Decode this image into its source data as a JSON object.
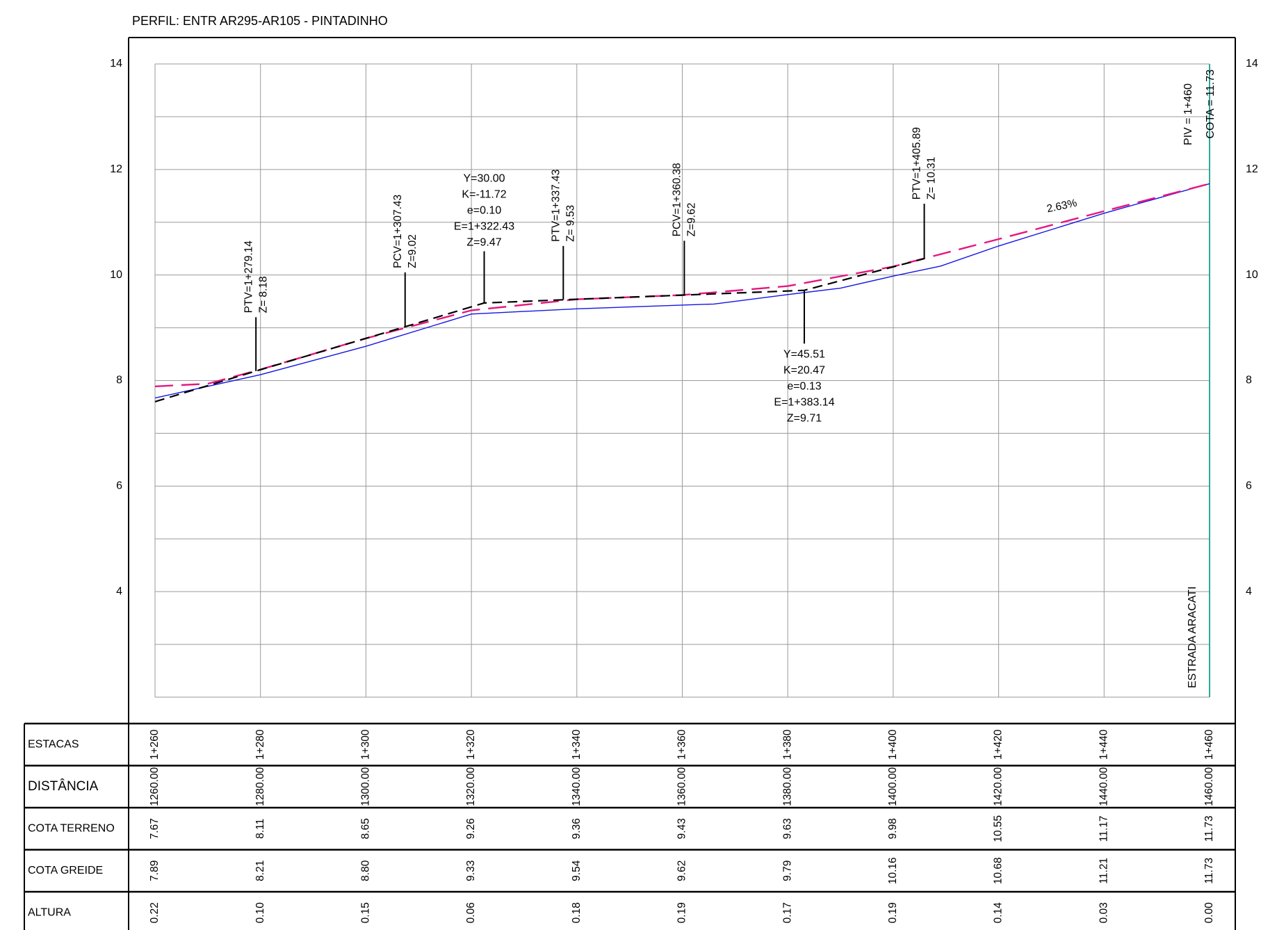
{
  "title": "PERFIL: ENTR AR295-AR105 - PINTADINHO",
  "chart_data": {
    "type": "line",
    "title": "PERFIL: ENTR AR295-AR105 - PINTADINHO",
    "xlim": [
      1260,
      1460
    ],
    "ylim": [
      2,
      14
    ],
    "y_ticks": [
      4,
      6,
      8,
      10,
      12,
      14
    ],
    "grid": true,
    "series": [
      {
        "role": "terreno",
        "color": "#1414e6",
        "x": [
          1260,
          1280,
          1300,
          1320,
          1340,
          1360,
          1366,
          1380,
          1390,
          1400,
          1409,
          1420,
          1440,
          1460
        ],
        "y": [
          7.67,
          8.11,
          8.65,
          9.26,
          9.36,
          9.43,
          9.45,
          9.63,
          9.75,
          9.98,
          10.17,
          10.55,
          11.17,
          11.73
        ]
      },
      {
        "role": "greide",
        "color": "#e6167f",
        "x": [
          1260,
          1270,
          1280,
          1300,
          1320,
          1340,
          1360,
          1380,
          1400,
          1420,
          1440,
          1460
        ],
        "y": [
          7.89,
          7.94,
          8.21,
          8.8,
          9.33,
          9.54,
          9.62,
          9.79,
          10.16,
          10.68,
          11.21,
          11.73
        ]
      },
      {
        "role": "tangentes",
        "color": "#000000",
        "x": [
          1260,
          1279.14,
          1307.43,
          1322.43,
          1337.43,
          1360.38,
          1383.14,
          1405.89
        ],
        "y": [
          7.6,
          8.18,
          9.02,
          9.47,
          9.53,
          9.62,
          9.71,
          10.31
        ]
      }
    ],
    "curve_annotations": [
      {
        "at": 1279.14,
        "z": 8.18,
        "text_top": 9.2,
        "vertical": true,
        "lines": [
          "PTV=1+279.14",
          "Z= 8.18"
        ]
      },
      {
        "at": 1307.43,
        "z": 9.02,
        "text_top": 10.05,
        "vertical": true,
        "lines": [
          "PCV=1+307.43",
          "Z=9.02"
        ]
      },
      {
        "at": 1322.43,
        "z": 9.47,
        "text_top": 10.45,
        "vertical": false,
        "lines": [
          "Y=30.00",
          "K=-11.72",
          "e=0.10",
          "E=1+322.43",
          "Z=9.47"
        ]
      },
      {
        "at": 1337.43,
        "z": 9.53,
        "text_top": 10.55,
        "vertical": true,
        "lines": [
          "PTV=1+337.43",
          "Z= 9.53"
        ]
      },
      {
        "at": 1360.38,
        "z": 9.62,
        "text_top": 10.65,
        "vertical": true,
        "lines": [
          "PCV=1+360.38",
          "Z=9.62"
        ]
      },
      {
        "at": 1383.14,
        "z": 9.71,
        "text_top": 8.7,
        "vertical": false,
        "below": true,
        "lines": [
          "Y=45.51",
          "K=20.47",
          "e=0.13",
          "E=1+383.14",
          "Z=9.71"
        ]
      },
      {
        "at": 1405.89,
        "z": 10.31,
        "text_top": 11.35,
        "vertical": true,
        "lines": [
          "PTV=1+405.89",
          "Z= 10.31"
        ]
      }
    ],
    "slope_label": {
      "text": "2.63%",
      "x": 1432,
      "y": 11.3
    },
    "end_label": {
      "at": 1460,
      "lines": [
        "PIV = 1+460",
        "COTA =  11.73"
      ],
      "road_name": "ESTRADA ARACATI",
      "color": "#2aa89a"
    },
    "table": {
      "rows": [
        {
          "label": "ESTACAS",
          "values": [
            "1+260",
            "1+280",
            "1+300",
            "1+320",
            "1+340",
            "1+360",
            "1+380",
            "1+400",
            "1+420",
            "1+440",
            "1+460"
          ]
        },
        {
          "label": "DISTÂNCIA",
          "values": [
            "1260.00",
            "1280.00",
            "1300.00",
            "1320.00",
            "1340.00",
            "1360.00",
            "1380.00",
            "1400.00",
            "1420.00",
            "1440.00",
            "1460.00"
          ]
        },
        {
          "label": "COTA TERRENO",
          "values": [
            "7.67",
            "8.11",
            "8.65",
            "9.26",
            "9.36",
            "9.43",
            "9.63",
            "9.98",
            "10.55",
            "11.17",
            "11.73"
          ]
        },
        {
          "label": "COTA GREIDE",
          "values": [
            "7.89",
            "8.21",
            "8.80",
            "9.33",
            "9.54",
            "9.62",
            "9.79",
            "10.16",
            "10.68",
            "11.21",
            "11.73"
          ]
        },
        {
          "label": "ALTURA",
          "values": [
            "0.22",
            "0.10",
            "0.15",
            "0.06",
            "0.18",
            "0.19",
            "0.17",
            "0.19",
            "0.14",
            "0.03",
            "0.00"
          ]
        }
      ]
    }
  }
}
